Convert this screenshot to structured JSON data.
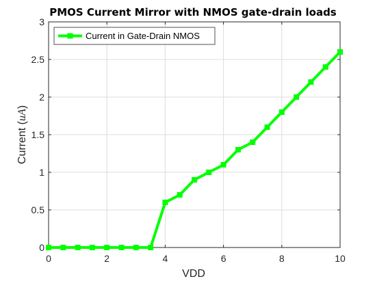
{
  "chart_data": {
    "type": "line",
    "title": "PMOS Current Mirror with NMOS gate-drain loads",
    "xlabel": "VDD",
    "ylabel": "Current (uA)",
    "ylabel_prefix": "Current (",
    "ylabel_unit": "uA",
    "ylabel_suffix": ")",
    "xlim": [
      0,
      10
    ],
    "ylim": [
      0,
      3
    ],
    "xticks": [
      0,
      2,
      4,
      6,
      8,
      10
    ],
    "yticks": [
      0,
      0.5,
      1,
      1.5,
      2,
      2.5,
      3
    ],
    "grid": true,
    "legend_position": "top-left",
    "series": [
      {
        "name": "Current in Gate-Drain NMOS",
        "color": "#00ff00",
        "marker": "square",
        "x": [
          0,
          0.5,
          1,
          1.5,
          2,
          2.5,
          3,
          3.5,
          4,
          4.5,
          5,
          5.5,
          6,
          6.5,
          7,
          7.5,
          8,
          8.5,
          9,
          9.5,
          10
        ],
        "y": [
          0,
          0,
          0,
          0,
          0,
          0,
          0,
          0,
          0.6,
          0.7,
          0.9,
          1.0,
          1.1,
          1.3,
          1.4,
          1.6,
          1.8,
          2.0,
          2.2,
          2.4,
          2.6
        ]
      }
    ]
  }
}
